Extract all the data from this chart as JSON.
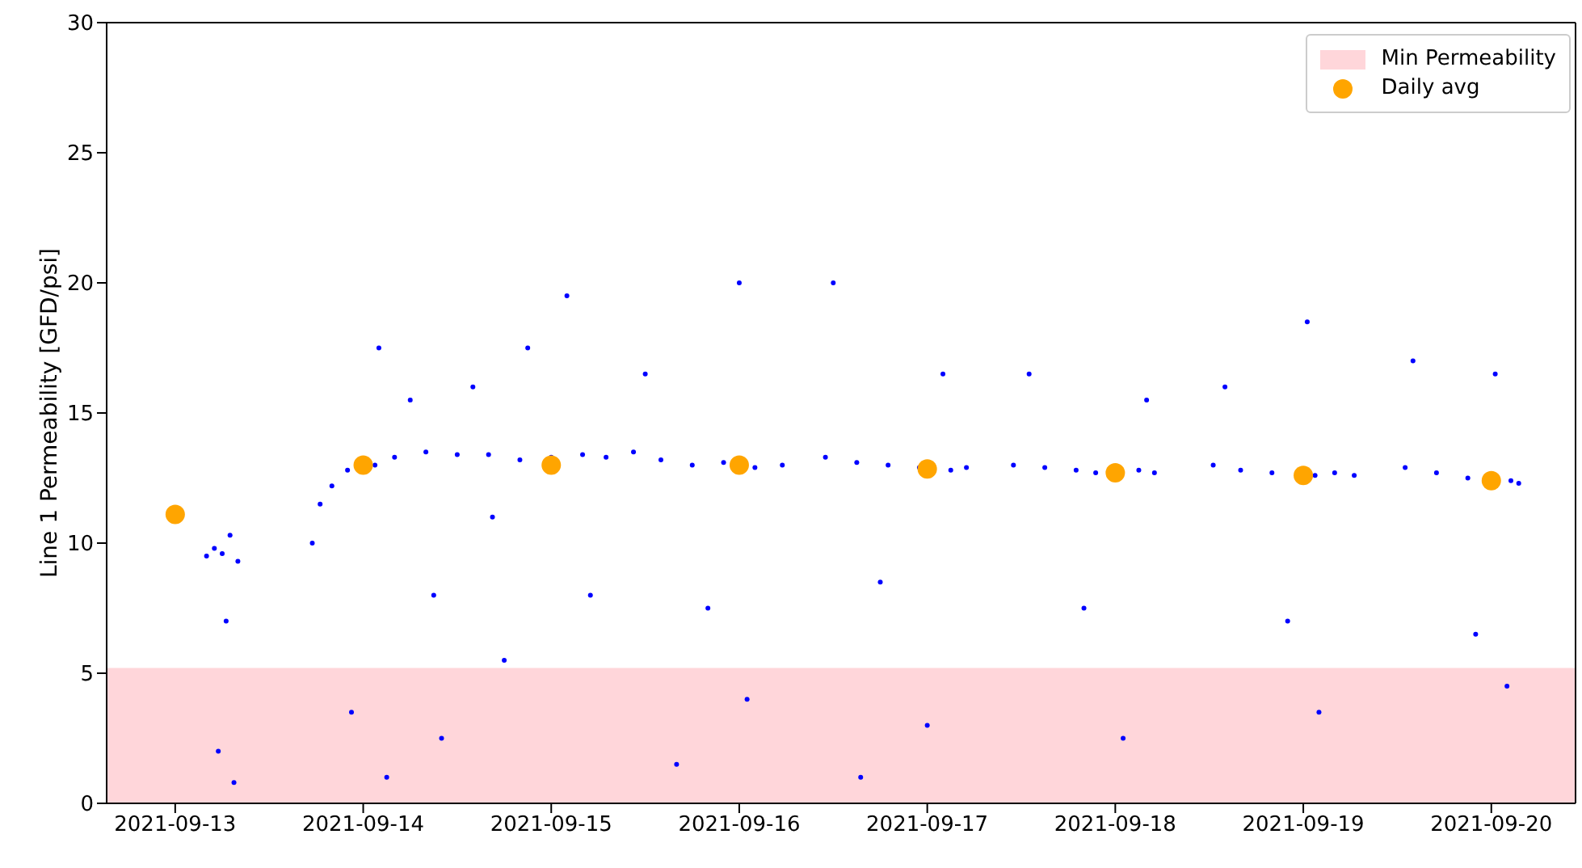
{
  "chart_data": {
    "type": "scatter",
    "ylabel": "Line 1 Permeability [GFD/psi]",
    "xlim": [
      "2021-09-12T15:15",
      "2021-09-20T10:45"
    ],
    "xticks": [
      "2021-09-13",
      "2021-09-14",
      "2021-09-15",
      "2021-09-16",
      "2021-09-17",
      "2021-09-18",
      "2021-09-19",
      "2021-09-20"
    ],
    "ylim": [
      0,
      30
    ],
    "yticks": [
      0,
      5,
      10,
      15,
      20,
      25,
      30
    ],
    "legend": "top right",
    "bands": [
      {
        "axis": "y",
        "from": 0,
        "to": 5.2,
        "label": "Min Permeability",
        "color": "#ffd6da"
      }
    ],
    "series": [
      {
        "color": "#0000ff",
        "marker": "circle",
        "x": [
          "2021-09-13T04:00",
          "2021-09-13T05:00",
          "2021-09-13T06:00",
          "2021-09-13T07:00",
          "2021-09-13T08:00",
          "2021-09-13T06:30",
          "2021-09-13T05:30",
          "2021-09-13T07:30",
          "2021-09-13T17:30",
          "2021-09-13T18:30",
          "2021-09-13T20:00",
          "2021-09-13T22:00",
          "2021-09-14T01:30",
          "2021-09-14T04:00",
          "2021-09-14T08:00",
          "2021-09-14T12:00",
          "2021-09-14T16:00",
          "2021-09-14T20:00",
          "2021-09-15T00:00",
          "2021-09-15T04:00",
          "2021-09-15T07:00",
          "2021-09-14T02:00",
          "2021-09-14T06:00",
          "2021-09-14T09:00",
          "2021-09-14T10:00",
          "2021-09-14T14:00",
          "2021-09-14T18:00",
          "2021-09-14T21:00",
          "2021-09-15T02:00",
          "2021-09-15T05:00",
          "2021-09-14T03:00",
          "2021-09-13T22:30",
          "2021-09-14T16:30",
          "2021-09-15T10:30",
          "2021-09-15T14:00",
          "2021-09-15T18:00",
          "2021-09-15T22:00",
          "2021-09-16T02:00",
          "2021-09-16T05:30",
          "2021-09-15T12:00",
          "2021-09-15T20:00",
          "2021-09-16T00:00",
          "2021-09-16T01:00",
          "2021-09-15T16:00",
          "2021-09-16T11:00",
          "2021-09-16T15:00",
          "2021-09-16T19:00",
          "2021-09-16T23:00",
          "2021-09-17T03:00",
          "2021-09-17T05:00",
          "2021-09-16T12:00",
          "2021-09-16T18:00",
          "2021-09-17T00:00",
          "2021-09-17T02:00",
          "2021-09-16T15:30",
          "2021-09-17T11:00",
          "2021-09-17T15:00",
          "2021-09-17T19:00",
          "2021-09-17T21:30",
          "2021-09-18T03:00",
          "2021-09-18T05:00",
          "2021-09-17T13:00",
          "2021-09-17T20:00",
          "2021-09-18T01:00",
          "2021-09-18T04:00",
          "2021-09-18T12:30",
          "2021-09-18T16:00",
          "2021-09-18T20:00",
          "2021-09-19T01:30",
          "2021-09-19T04:00",
          "2021-09-19T06:30",
          "2021-09-18T14:00",
          "2021-09-18T22:00",
          "2021-09-19T02:00",
          "2021-09-19T00:30",
          "2021-09-19T13:00",
          "2021-09-19T17:00",
          "2021-09-19T21:00",
          "2021-09-20T02:30",
          "2021-09-20T03:30",
          "2021-09-19T14:00",
          "2021-09-19T22:00",
          "2021-09-20T00:30",
          "2021-09-20T02:00"
        ],
        "values": [
          9.5,
          9.8,
          9.6,
          10.3,
          9.3,
          7.0,
          2.0,
          0.8,
          10.0,
          11.5,
          12.2,
          12.8,
          13.0,
          13.3,
          13.5,
          13.4,
          13.4,
          13.2,
          13.3,
          13.4,
          13.3,
          17.5,
          15.5,
          8.0,
          2.5,
          16.0,
          5.5,
          17.5,
          19.5,
          8.0,
          1.0,
          3.5,
          11.0,
          13.5,
          13.2,
          13.0,
          13.1,
          12.9,
          13.0,
          16.5,
          7.5,
          20.0,
          4.0,
          1.5,
          13.3,
          13.1,
          13.0,
          12.9,
          12.8,
          12.9,
          20.0,
          8.5,
          3.0,
          16.5,
          1.0,
          13.0,
          12.9,
          12.8,
          12.7,
          12.8,
          12.7,
          16.5,
          7.5,
          2.5,
          15.5,
          13.0,
          12.8,
          12.7,
          12.6,
          12.7,
          12.6,
          16.0,
          7.0,
          3.5,
          18.5,
          12.9,
          12.7,
          12.5,
          12.4,
          12.3,
          17.0,
          6.5,
          16.5,
          4.5
        ]
      },
      {
        "name": "Daily avg",
        "color": "#ffa500",
        "marker": "circle",
        "x": [
          "2021-09-13",
          "2021-09-14",
          "2021-09-15",
          "2021-09-16",
          "2021-09-17",
          "2021-09-18",
          "2021-09-19",
          "2021-09-20"
        ],
        "values": [
          11.1,
          13.0,
          13.0,
          13.0,
          12.85,
          12.7,
          12.6,
          12.4
        ]
      }
    ]
  }
}
